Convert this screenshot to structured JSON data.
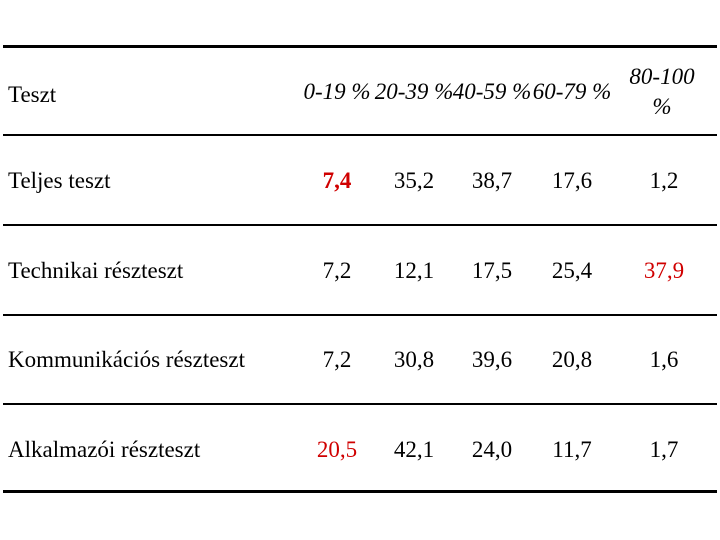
{
  "table": {
    "header": [
      "Teszt",
      "0-19 %",
      "20-39 %",
      "40-59 %",
      "60-79 %",
      "80-100 %"
    ],
    "rows": [
      [
        "Teljes teszt",
        "7,4",
        "35,2",
        "38,7",
        "17,6",
        "1,2"
      ],
      [
        "Technikai részteszt",
        "7,2",
        "12,1",
        "17,5",
        "25,4",
        "37,9"
      ],
      [
        "Kommunikációs részteszt",
        "7,2",
        "30,8",
        "39,6",
        "20,8",
        "1,6"
      ],
      [
        "Alkalmazói részteszt",
        "20,5",
        "42,1",
        "24,0",
        "11,7",
        "1,7"
      ]
    ]
  }
}
